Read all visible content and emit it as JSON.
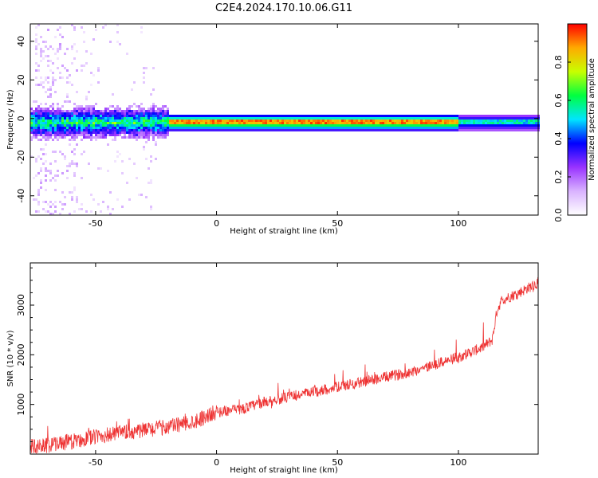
{
  "title": "C2E4.2024.170.10.06.G11",
  "chart_data": [
    {
      "type": "heatmap",
      "name": "spectrogram",
      "xlabel": "Height of straight line (km)",
      "ylabel": "Frequency (Hz)",
      "xlim": [
        -77,
        133
      ],
      "ylim": [
        -50,
        49
      ],
      "xticks": [
        -50,
        0,
        50,
        100
      ],
      "yticks": [
        -40,
        -20,
        0,
        20,
        40
      ],
      "colorbar": {
        "label": "Normalized spectral amplitude",
        "range": [
          0,
          1
        ],
        "ticks": [
          "0.0",
          "0.2",
          "0.4",
          "0.6",
          "0.8"
        ],
        "colormap": [
          "#ffffff",
          "#d9b3ff",
          "#9933ff",
          "#0000ff",
          "#00e5ff",
          "#00ff40",
          "#c8ff00",
          "#ffaa00",
          "#ff0000"
        ]
      },
      "ridge": {
        "frequency_hz": -1.5,
        "strong_from_km": -20
      }
    },
    {
      "type": "line",
      "name": "snr",
      "xlabel": "Height of straight line (km)",
      "ylabel": "SNR (10 * v/v)",
      "xlim": [
        -77,
        133
      ],
      "ylim": [
        0,
        3850
      ],
      "xticks": [
        -50,
        0,
        50,
        100
      ],
      "yticks": [
        1000,
        2000,
        3000
      ],
      "color": "#ee3333",
      "series": [
        {
          "x": [
            -77,
            -70,
            -60,
            -50,
            -40,
            -30,
            -20,
            -10,
            0,
            10,
            20,
            30,
            40,
            50,
            60,
            70,
            80,
            90,
            100,
            110,
            114,
            116,
            118,
            125,
            133
          ],
          "y": [
            150,
            180,
            250,
            350,
            420,
            480,
            550,
            650,
            850,
            900,
            1050,
            1150,
            1250,
            1350,
            1450,
            1550,
            1650,
            1800,
            1950,
            2150,
            2300,
            2900,
            3100,
            3250,
            3450
          ]
        }
      ]
    }
  ]
}
